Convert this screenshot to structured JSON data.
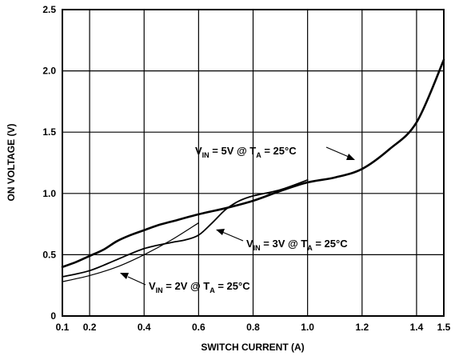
{
  "chart_data": {
    "type": "line",
    "xlabel": "SWITCH CURRENT (A)",
    "ylabel": "ON VOLTAGE (V)",
    "xlim": [
      0.1,
      1.5
    ],
    "ylim": [
      0,
      2.5
    ],
    "x_ticks": [
      0.1,
      0.2,
      0.4,
      0.6,
      0.8,
      1.0,
      1.2,
      1.4,
      1.5
    ],
    "x_tick_labels": [
      "0.1",
      "0.2",
      "0.4",
      "0.6",
      "0.8",
      "1.0",
      "1.2",
      "1.4",
      "1.5"
    ],
    "y_ticks": [
      0,
      0.5,
      1.0,
      1.5,
      2.0,
      2.5
    ],
    "y_tick_labels": [
      "0",
      "0.5",
      "1.0",
      "1.5",
      "2.0",
      "2.5"
    ],
    "grid": true,
    "series": [
      {
        "name_parts": {
          "v": "V",
          "vsub": "IN",
          "mid": " = 5V @ T",
          "tsub": "A",
          "end": " = 25°C"
        },
        "stroke": 2.6,
        "x": [
          0.1,
          0.15,
          0.2,
          0.25,
          0.3,
          0.35,
          0.4,
          0.45,
          0.5,
          0.6,
          0.7,
          0.8,
          0.9,
          1.0,
          1.1,
          1.2,
          1.3,
          1.4,
          1.5
        ],
        "y": [
          0.4,
          0.44,
          0.49,
          0.54,
          0.61,
          0.66,
          0.7,
          0.74,
          0.77,
          0.83,
          0.88,
          0.94,
          1.02,
          1.09,
          1.13,
          1.2,
          1.36,
          1.58,
          2.09
        ]
      },
      {
        "name_parts": {
          "v": "V",
          "vsub": "IN",
          "mid": " = 3V @ T",
          "tsub": "A",
          "end": " = 25°C"
        },
        "stroke": 1.8,
        "x": [
          0.1,
          0.2,
          0.3,
          0.4,
          0.5,
          0.55,
          0.6,
          0.65,
          0.7,
          0.75,
          0.8,
          0.9,
          1.0
        ],
        "y": [
          0.32,
          0.37,
          0.46,
          0.55,
          0.6,
          0.62,
          0.66,
          0.76,
          0.87,
          0.94,
          0.98,
          1.03,
          1.11
        ]
      },
      {
        "name_parts": {
          "v": "V",
          "vsub": "IN",
          "mid": " = 2V @ T",
          "tsub": "A",
          "end": " = 25°C"
        },
        "stroke": 1.2,
        "x": [
          0.1,
          0.2,
          0.3,
          0.4,
          0.5,
          0.6
        ],
        "y": [
          0.28,
          0.33,
          0.4,
          0.5,
          0.62,
          0.76
        ]
      }
    ]
  }
}
